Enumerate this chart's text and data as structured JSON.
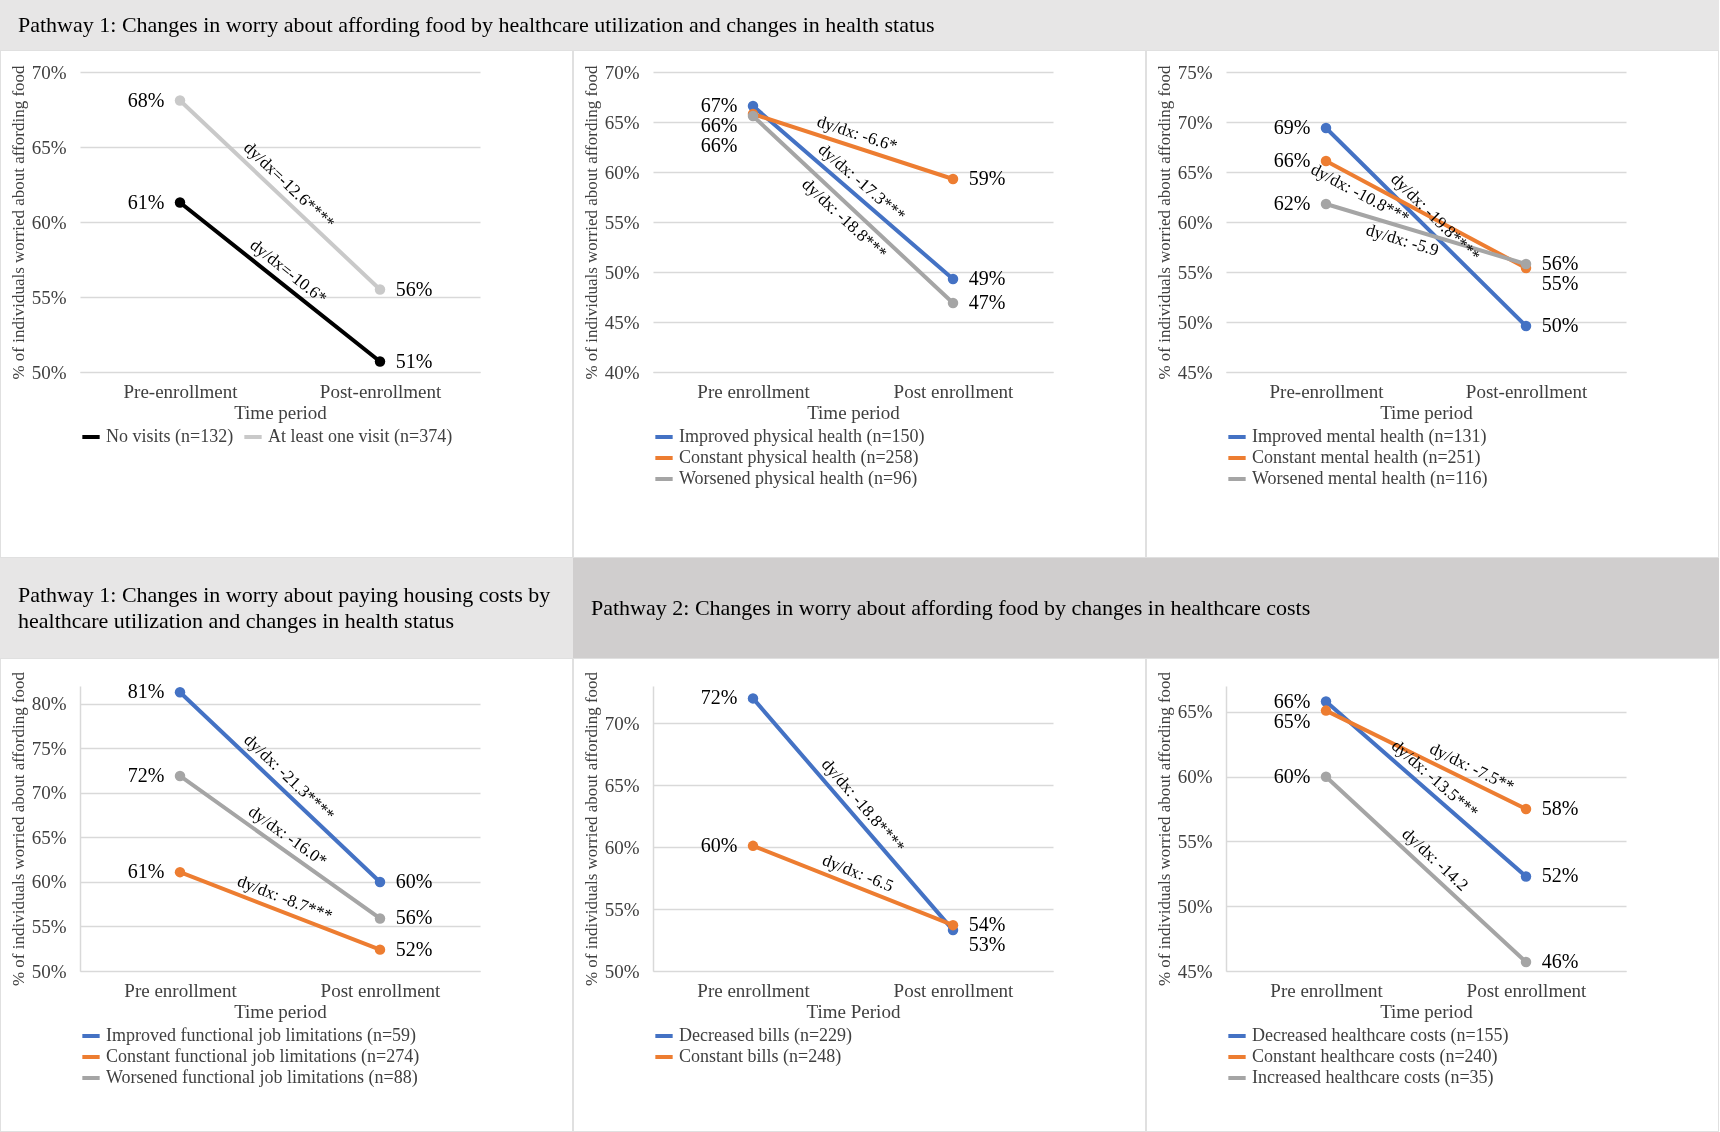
{
  "chart_data": [
    {
      "type": "line",
      "title": "Pathway 1: Changes in worry about affording food by healthcare utilization and changes in health status",
      "categories": [
        "Pre-enrollment",
        "Post-enrollment"
      ],
      "xlabel": "Time period",
      "ylabel": "% of individuals worried about affording food",
      "ylim": [
        50,
        70
      ],
      "yticks": [
        {
          "value": 50,
          "label": "50%"
        },
        {
          "value": 55,
          "label": "55%"
        },
        {
          "value": 60,
          "label": "60%"
        },
        {
          "value": 65,
          "label": "65%"
        },
        {
          "value": 70,
          "label": "70%"
        }
      ],
      "grid": "y",
      "legend": "bottom",
      "marker": "circle",
      "series": [
        {
          "name": "No visits (n=132)",
          "color": "#000000",
          "values": [
            61.3,
            50.7
          ],
          "value_labels": [
            "61%",
            "51%"
          ]
        },
        {
          "name": "At least one visit (n=374)",
          "color": "#c9c9c9",
          "values": [
            68.1,
            55.5
          ],
          "value_labels": [
            "68%",
            "56%"
          ]
        }
      ],
      "annotations": [
        "dy/dx=-10.6*",
        "dy/dx=-12.6****"
      ]
    },
    {
      "type": "line",
      "categories": [
        "Pre enrollment",
        "Post enrollment"
      ],
      "xlabel": "Time period",
      "ylabel": "% of individuals worried about affording food",
      "ylim": [
        40,
        70
      ],
      "yticks": [
        {
          "value": 40,
          "label": "40%"
        },
        {
          "value": 45,
          "label": "45%"
        },
        {
          "value": 50,
          "label": "50%"
        },
        {
          "value": 55,
          "label": "55%"
        },
        {
          "value": 60,
          "label": "60%"
        },
        {
          "value": 65,
          "label": "65%"
        },
        {
          "value": 70,
          "label": "70%"
        }
      ],
      "grid": "y",
      "legend": "bottom",
      "marker": "circle",
      "series": [
        {
          "name": "Improved physical health (n=150)",
          "color": "#4472c4",
          "values": [
            66.6,
            49.3
          ],
          "value_labels": [
            "67%",
            "49%"
          ]
        },
        {
          "name": "Constant physical health (n=258)",
          "color": "#ed7d31",
          "values": [
            65.8,
            59.3
          ],
          "value_labels": [
            "66%",
            "59%"
          ]
        },
        {
          "name": "Worsened physical health (n=96)",
          "color": "#a5a5a5",
          "values": [
            65.6,
            46.9
          ],
          "value_labels": [
            "66%",
            "47%"
          ]
        }
      ],
      "annotations": [
        "dy/dx: -17.3***",
        "dy/dx: -6.6*",
        "dy/dx: -18.8***"
      ]
    },
    {
      "type": "line",
      "categories": [
        "Pre-enrollment",
        "Post-enrollment"
      ],
      "xlabel": "Time period",
      "ylabel": "% of individuals worried about affording food",
      "ylim": [
        45,
        75
      ],
      "yticks": [
        {
          "value": 45,
          "label": "45%"
        },
        {
          "value": 50,
          "label": "50%"
        },
        {
          "value": 55,
          "label": "55%"
        },
        {
          "value": 60,
          "label": "60%"
        },
        {
          "value": 65,
          "label": "65%"
        },
        {
          "value": 70,
          "label": "70%"
        },
        {
          "value": 75,
          "label": "75%"
        }
      ],
      "grid": "y",
      "legend": "bottom",
      "marker": "circle",
      "series": [
        {
          "name": "Improved mental health (n=131)",
          "color": "#4472c4",
          "values": [
            69.4,
            49.6
          ],
          "value_labels": [
            "69%",
            "50%"
          ]
        },
        {
          "name": "Constant mental health (n=251)",
          "color": "#ed7d31",
          "values": [
            66.1,
            55.4
          ],
          "value_labels": [
            "66%",
            "55%"
          ]
        },
        {
          "name": "Worsened mental health (n=116)",
          "color": "#a5a5a5",
          "values": [
            61.8,
            55.8
          ],
          "value_labels": [
            "62%",
            "56%"
          ]
        }
      ],
      "annotations": [
        "dy/dx: -19.8****",
        "dy/dx: -10.8***",
        "dy/dx: -5.9"
      ]
    },
    {
      "type": "line",
      "title": "Pathway 1: Changes in worry about paying housing costs by healthcare utilization and changes in health status",
      "categories": [
        "Pre enrollment",
        "Post enrollment"
      ],
      "xlabel": "Time period",
      "ylabel": "% of individuals worried about affording food",
      "ylim": [
        50,
        82
      ],
      "yticks": [
        {
          "value": 50,
          "label": "50%"
        },
        {
          "value": 55,
          "label": "55%"
        },
        {
          "value": 60,
          "label": "60%"
        },
        {
          "value": 65,
          "label": "65%"
        },
        {
          "value": 70,
          "label": "70%"
        },
        {
          "value": 75,
          "label": "75%"
        },
        {
          "value": 80,
          "label": "80%"
        }
      ],
      "grid": "y",
      "legend": "bottom",
      "marker": "circle",
      "series": [
        {
          "name": "Improved functional job limitations (n=59)",
          "color": "#4472c4",
          "values": [
            81.3,
            60.0
          ],
          "value_labels": [
            "81%",
            "60%"
          ]
        },
        {
          "name": "Constant functional job limitations (n=274)",
          "color": "#ed7d31",
          "values": [
            61.1,
            52.4
          ],
          "value_labels": [
            "61%",
            "52%"
          ]
        },
        {
          "name": "Worsened functional job limitations (n=88)",
          "color": "#a5a5a5",
          "values": [
            71.9,
            55.9
          ],
          "value_labels": [
            "72%",
            "56%"
          ]
        }
      ],
      "annotations": [
        "dy/dx: -21.3****",
        "dy/dx: -8.7***",
        "dy/dx: -16.0*"
      ]
    },
    {
      "type": "line",
      "title": "Pathway 2: Changes in worry about affording food by changes in healthcare costs",
      "categories": [
        "Pre enrollment",
        "Post enrollment"
      ],
      "xlabel": "Time Period",
      "ylabel": "% of individuals worried about affording food",
      "ylim": [
        50,
        73
      ],
      "yticks": [
        {
          "value": 50,
          "label": "50%"
        },
        {
          "value": 55,
          "label": "55%"
        },
        {
          "value": 60,
          "label": "60%"
        },
        {
          "value": 65,
          "label": "65%"
        },
        {
          "value": 70,
          "label": "70%"
        }
      ],
      "grid": "y",
      "legend": "bottom",
      "marker": "circle",
      "series": [
        {
          "name": "Decreased bills (n=229)",
          "color": "#4472c4",
          "values": [
            72.0,
            53.3
          ],
          "value_labels": [
            "72%",
            "53%"
          ]
        },
        {
          "name": "Constant bills (n=248)",
          "color": "#ed7d31",
          "values": [
            60.1,
            53.7
          ],
          "value_labels": [
            "60%",
            "54%"
          ]
        }
      ],
      "annotations": [
        "dy/dx: -18.8****",
        "dy/dx: -6.5"
      ]
    },
    {
      "type": "line",
      "categories": [
        "Pre enrollment",
        "Post enrollment"
      ],
      "xlabel": "Time period",
      "ylabel": "% of individuals worried about affording food",
      "ylim": [
        45,
        67
      ],
      "yticks": [
        {
          "value": 45,
          "label": "45%"
        },
        {
          "value": 50,
          "label": "50%"
        },
        {
          "value": 55,
          "label": "55%"
        },
        {
          "value": 60,
          "label": "60%"
        },
        {
          "value": 65,
          "label": "65%"
        }
      ],
      "grid": "y",
      "legend": "bottom",
      "marker": "circle",
      "series": [
        {
          "name": "Decreased healthcare costs (n=155)",
          "color": "#4472c4",
          "values": [
            65.8,
            52.3
          ],
          "value_labels": [
            "66%",
            "52%"
          ]
        },
        {
          "name": "Constant healthcare costs (n=240)",
          "color": "#ed7d31",
          "values": [
            65.1,
            57.5
          ],
          "value_labels": [
            "65%",
            "58%"
          ]
        },
        {
          "name": "Increased healthcare costs (n=35)",
          "color": "#a5a5a5",
          "values": [
            60.0,
            45.7
          ],
          "value_labels": [
            "60%",
            "46%"
          ]
        }
      ],
      "annotations": [
        "dy/dx: -13.5***",
        "dy/dx: -7.5**",
        "dy/dx: -14.2"
      ]
    }
  ]
}
